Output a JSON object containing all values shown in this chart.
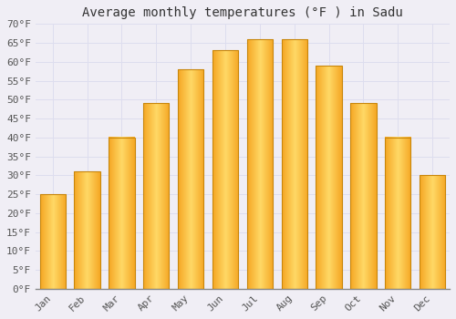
{
  "title": "Average monthly temperatures (°F ) in Sadu",
  "months": [
    "Jan",
    "Feb",
    "Mar",
    "Apr",
    "May",
    "Jun",
    "Jul",
    "Aug",
    "Sep",
    "Oct",
    "Nov",
    "Dec"
  ],
  "values": [
    25,
    31,
    40,
    49,
    58,
    63,
    66,
    66,
    59,
    49,
    40,
    30
  ],
  "bar_color_left": "#F5A623",
  "bar_color_center": "#FFD966",
  "bar_color_right": "#F5A623",
  "bar_edge_color": "#C8860A",
  "background_color": "#F0EEF5",
  "grid_color": "#DDDDEE",
  "ylim": [
    0,
    70
  ],
  "yticks": [
    0,
    5,
    10,
    15,
    20,
    25,
    30,
    35,
    40,
    45,
    50,
    55,
    60,
    65,
    70
  ],
  "title_fontsize": 10,
  "tick_fontsize": 8,
  "font_family": "monospace"
}
